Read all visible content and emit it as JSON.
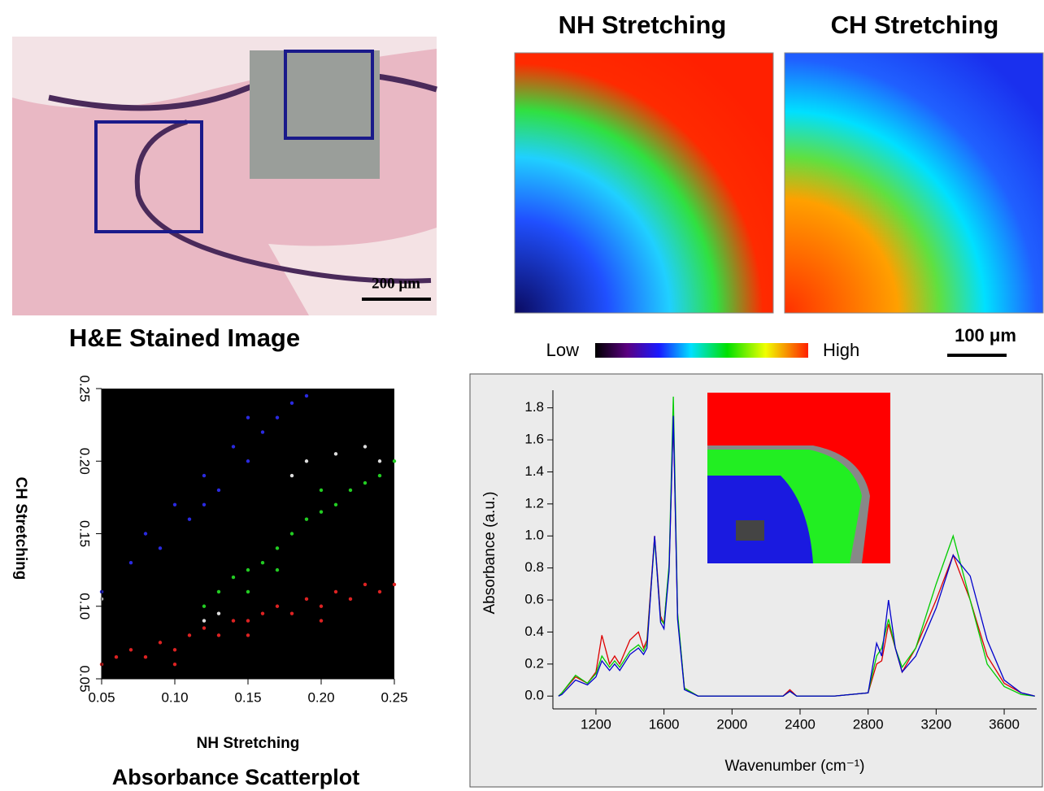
{
  "he_image": {
    "title": "H&E Stained Image",
    "scale_bar": "200 μm"
  },
  "ir_maps": {
    "titles": [
      "NH Stretching",
      "CH Stretching"
    ],
    "colorbar_low": "Low",
    "colorbar_high": "High",
    "scale_bar": "100 μm"
  },
  "chart_data": [
    {
      "type": "scatter",
      "title": "Absorbance Scatterplot",
      "xlabel": "NH Stretching",
      "ylabel": "CH Stretching",
      "xlim": [
        0.05,
        0.25
      ],
      "ylim": [
        0.05,
        0.25
      ],
      "xticks": [
        0.05,
        {
          "value": 0.1,
          "label": "0.10"
        },
        0.15,
        {
          "value": 0.2,
          "label": "0.20"
        },
        0.25
      ],
      "yticks": [
        0.05,
        {
          "value": 0.1,
          "label": "0.10"
        },
        0.15,
        {
          "value": 0.2,
          "label": "0.20"
        },
        0.25
      ],
      "background": "#000000",
      "series": [
        {
          "color": "#2a2ae0",
          "x": [
            0.05,
            0.07,
            0.08,
            0.09,
            0.1,
            0.11,
            0.12,
            0.13,
            0.14,
            0.15,
            0.16,
            0.17,
            0.18,
            0.19,
            0.12,
            0.15
          ],
          "y": [
            0.11,
            0.13,
            0.15,
            0.14,
            0.17,
            0.16,
            0.19,
            0.18,
            0.21,
            0.2,
            0.22,
            0.23,
            0.24,
            0.245,
            0.17,
            0.23
          ]
        },
        {
          "color": "#22cc22",
          "x": [
            0.12,
            0.13,
            0.14,
            0.15,
            0.16,
            0.17,
            0.18,
            0.19,
            0.2,
            0.21,
            0.22,
            0.23,
            0.24,
            0.25,
            0.15,
            0.17,
            0.2
          ],
          "y": [
            0.1,
            0.11,
            0.12,
            0.125,
            0.13,
            0.14,
            0.15,
            0.16,
            0.165,
            0.17,
            0.18,
            0.185,
            0.19,
            0.2,
            0.11,
            0.125,
            0.18
          ]
        },
        {
          "color": "#dddddd",
          "x": [
            0.05,
            0.13,
            0.12,
            0.19,
            0.21,
            0.23,
            0.24,
            0.18
          ],
          "y": [
            0.105,
            0.095,
            0.09,
            0.2,
            0.205,
            0.21,
            0.2,
            0.19
          ]
        },
        {
          "color": "#dd2222",
          "x": [
            0.05,
            0.06,
            0.07,
            0.08,
            0.09,
            0.1,
            0.11,
            0.12,
            0.13,
            0.14,
            0.15,
            0.16,
            0.17,
            0.18,
            0.19,
            0.2,
            0.21,
            0.22,
            0.23,
            0.24,
            0.25,
            0.1,
            0.15,
            0.2
          ],
          "y": [
            0.06,
            0.065,
            0.07,
            0.065,
            0.075,
            0.07,
            0.08,
            0.085,
            0.08,
            0.09,
            0.09,
            0.095,
            0.1,
            0.095,
            0.105,
            0.1,
            0.11,
            0.105,
            0.115,
            0.11,
            0.115,
            0.06,
            0.08,
            0.09
          ]
        }
      ]
    },
    {
      "type": "line",
      "xlabel": "Wavenumber (cm⁻¹)",
      "ylabel": "Absorbance (a.u.)",
      "xlim": [
        947,
        3791
      ],
      "ylim": [
        -0.08,
        1.91
      ],
      "xticks": [
        1200,
        1600,
        2000,
        2400,
        2800,
        3200,
        3600
      ],
      "yticks": [
        {
          "value": 0,
          "label": "0.0"
        },
        0.2,
        0.4,
        0.6,
        0.8,
        {
          "value": 1,
          "label": "1.0"
        },
        1.2,
        1.4,
        1.6,
        1.8
      ],
      "x": [
        980,
        1000,
        1080,
        1150,
        1200,
        1235,
        1280,
        1310,
        1340,
        1400,
        1450,
        1480,
        1500,
        1545,
        1580,
        1600,
        1630,
        1655,
        1680,
        1720,
        1800,
        2000,
        2300,
        2340,
        2380,
        2600,
        2800,
        2850,
        2880,
        2920,
        2960,
        3000,
        3080,
        3200,
        3300,
        3400,
        3500,
        3600,
        3700,
        3780
      ],
      "series": [
        {
          "color": "#dd0000",
          "values": [
            0,
            0.02,
            0.12,
            0.08,
            0.15,
            0.38,
            0.2,
            0.25,
            0.2,
            0.35,
            0.4,
            0.3,
            0.35,
            1.0,
            0.5,
            0.45,
            0.8,
            1.75,
            0.5,
            0.05,
            0,
            0,
            0,
            0.04,
            0,
            0,
            0.02,
            0.2,
            0.22,
            0.45,
            0.3,
            0.15,
            0.3,
            0.6,
            0.88,
            0.6,
            0.25,
            0.08,
            0.02,
            0
          ]
        },
        {
          "color": "#00cc00",
          "values": [
            0,
            0.02,
            0.13,
            0.08,
            0.14,
            0.25,
            0.18,
            0.22,
            0.18,
            0.28,
            0.32,
            0.28,
            0.33,
            0.98,
            0.48,
            0.45,
            0.82,
            1.87,
            0.52,
            0.05,
            0,
            0,
            0,
            0.03,
            0,
            0,
            0.02,
            0.25,
            0.3,
            0.48,
            0.3,
            0.18,
            0.3,
            0.7,
            1.0,
            0.6,
            0.2,
            0.06,
            0.01,
            0
          ]
        },
        {
          "color": "#0000cc",
          "values": [
            0,
            0.01,
            0.1,
            0.07,
            0.12,
            0.22,
            0.16,
            0.2,
            0.16,
            0.26,
            0.3,
            0.26,
            0.3,
            1.0,
            0.46,
            0.42,
            0.78,
            1.75,
            0.48,
            0.04,
            0,
            0,
            0,
            0.03,
            0,
            0,
            0.02,
            0.33,
            0.25,
            0.6,
            0.3,
            0.15,
            0.25,
            0.55,
            0.88,
            0.75,
            0.35,
            0.1,
            0.02,
            0
          ]
        }
      ]
    }
  ]
}
